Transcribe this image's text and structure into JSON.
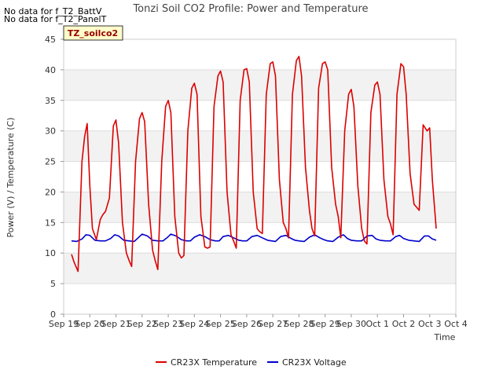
{
  "notes": {
    "line1": "No data for f_T2_BattV",
    "line2": "No data for f_T2_PanelT"
  },
  "badge": "TZ_soilco2",
  "chart_data": {
    "type": "line",
    "title": "Tonzi Soil CO2 Profile: Power and Temperature",
    "xlabel": "Time",
    "ylabel": "Power (V) / Temperature (C)",
    "xlim": [
      0,
      15
    ],
    "ylim": [
      0,
      45
    ],
    "yticks": [
      0,
      5,
      10,
      15,
      20,
      25,
      30,
      35,
      40,
      45
    ],
    "xtick_labels": [
      "Sep 19",
      "Sep 20",
      "Sep 21",
      "Sep 22",
      "Sep 23",
      "Sep 24",
      "Sep 25",
      "Sep 26",
      "Sep 27",
      "Sep 28",
      "Sep 29",
      "Sep 30",
      "Oct 1",
      "Oct 2",
      "Oct 3",
      "Oct 4"
    ],
    "grid": true,
    "legend_position": "bottom",
    "series": [
      {
        "name": "CR23X Temperature",
        "color": "#dd0000",
        "x": [
          0.3,
          0.4,
          0.55,
          0.7,
          0.8,
          0.9,
          1.0,
          1.1,
          1.25,
          1.4,
          1.5,
          1.6,
          1.75,
          1.9,
          2.0,
          2.1,
          2.25,
          2.4,
          2.5,
          2.6,
          2.75,
          2.9,
          3.0,
          3.1,
          3.25,
          3.4,
          3.5,
          3.6,
          3.75,
          3.9,
          4.0,
          4.1,
          4.25,
          4.4,
          4.5,
          4.6,
          4.75,
          4.9,
          5.0,
          5.1,
          5.25,
          5.4,
          5.5,
          5.6,
          5.75,
          5.9,
          6.0,
          6.1,
          6.25,
          6.4,
          6.5,
          6.6,
          6.75,
          6.9,
          7.0,
          7.1,
          7.25,
          7.4,
          7.5,
          7.6,
          7.75,
          7.9,
          8.0,
          8.1,
          8.25,
          8.4,
          8.5,
          8.6,
          8.75,
          8.9,
          9.0,
          9.1,
          9.25,
          9.4,
          9.5,
          9.6,
          9.75,
          9.9,
          10.0,
          10.1,
          10.25,
          10.4,
          10.5,
          10.6,
          10.75,
          10.9,
          11.0,
          11.1,
          11.25,
          11.4,
          11.5,
          11.6,
          11.75,
          11.9,
          12.0,
          12.1,
          12.25,
          12.4,
          12.5,
          12.6,
          12.75,
          12.9,
          13.0,
          13.1,
          13.25,
          13.4,
          13.5,
          13.6,
          13.75,
          13.9,
          14.0,
          14.1,
          14.25
        ],
        "y": [
          9.8,
          8.5,
          7.0,
          25.0,
          29.0,
          31.2,
          21.0,
          14.0,
          12.2,
          15.5,
          16.3,
          16.8,
          19.0,
          30.8,
          31.8,
          28.0,
          15.0,
          10.0,
          8.8,
          7.8,
          25.0,
          32.0,
          33.0,
          31.5,
          18.0,
          10.5,
          8.8,
          7.3,
          25.0,
          34.0,
          35.0,
          33.0,
          16.0,
          10.0,
          9.2,
          9.6,
          30.0,
          37.0,
          37.8,
          36.0,
          16.0,
          11.0,
          10.8,
          11.0,
          34.0,
          39.0,
          39.8,
          38.0,
          20.0,
          13.0,
          12.0,
          10.8,
          35.0,
          40.0,
          40.2,
          38.0,
          20.0,
          14.0,
          13.5,
          13.2,
          36.0,
          41.0,
          41.3,
          39.0,
          22.0,
          15.0,
          14.0,
          12.5,
          36.0,
          41.5,
          42.2,
          39.0,
          24.0,
          17.0,
          14.0,
          12.8,
          37.0,
          41.0,
          41.3,
          40.0,
          24.0,
          18.0,
          16.0,
          12.5,
          30.0,
          36.0,
          36.8,
          34.0,
          21.0,
          14.0,
          12.0,
          11.5,
          33.0,
          37.5,
          38.0,
          36.0,
          22.0,
          16.0,
          14.8,
          13.0,
          36.0,
          41.0,
          40.5,
          36.0,
          23.0,
          18.0,
          17.5,
          17.0,
          31.0,
          30.0,
          30.5,
          22.0,
          14.0
        ]
      },
      {
        "name": "CR23X Voltage",
        "color": "#0000cc",
        "x": [
          0.3,
          0.5,
          0.7,
          0.85,
          1.0,
          1.2,
          1.4,
          1.6,
          1.8,
          1.95,
          2.1,
          2.3,
          2.5,
          2.7,
          2.85,
          3.0,
          3.2,
          3.4,
          3.6,
          3.8,
          3.95,
          4.1,
          4.3,
          4.5,
          4.7,
          4.85,
          5.0,
          5.2,
          5.4,
          5.6,
          5.8,
          5.95,
          6.1,
          6.3,
          6.5,
          6.7,
          6.85,
          7.0,
          7.2,
          7.4,
          7.6,
          7.8,
          7.95,
          8.1,
          8.3,
          8.5,
          8.7,
          8.85,
          9.0,
          9.2,
          9.4,
          9.6,
          9.8,
          9.95,
          10.1,
          10.3,
          10.5,
          10.7,
          10.85,
          11.0,
          11.2,
          11.4,
          11.6,
          11.8,
          11.95,
          12.1,
          12.3,
          12.5,
          12.7,
          12.85,
          13.0,
          13.2,
          13.4,
          13.6,
          13.8,
          13.95,
          14.1,
          14.25
        ],
        "y": [
          12.0,
          11.9,
          12.3,
          13.0,
          12.9,
          12.1,
          12.0,
          12.0,
          12.4,
          13.0,
          12.8,
          12.1,
          12.0,
          11.9,
          12.5,
          13.1,
          12.8,
          12.1,
          12.0,
          12.0,
          12.5,
          13.1,
          12.8,
          12.2,
          12.0,
          12.0,
          12.6,
          13.0,
          12.7,
          12.2,
          12.0,
          12.0,
          12.7,
          12.9,
          12.5,
          12.1,
          12.0,
          12.0,
          12.7,
          12.9,
          12.5,
          12.1,
          12.0,
          11.9,
          12.7,
          12.9,
          12.4,
          12.1,
          12.0,
          11.9,
          12.6,
          13.0,
          12.5,
          12.2,
          12.0,
          11.9,
          12.6,
          13.0,
          12.4,
          12.1,
          12.0,
          12.0,
          12.8,
          12.9,
          12.3,
          12.1,
          12.0,
          12.0,
          12.7,
          12.9,
          12.4,
          12.1,
          12.0,
          11.9,
          12.8,
          12.8,
          12.3,
          12.1
        ]
      }
    ]
  }
}
